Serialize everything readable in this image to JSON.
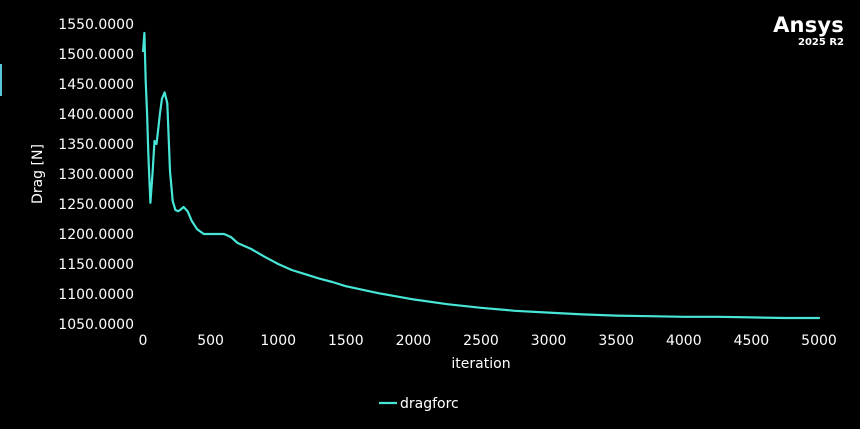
{
  "brand": {
    "name": "Ansys",
    "version": "2025 R2"
  },
  "colors": {
    "background": "#000000",
    "series": "#47e6d6",
    "text": "#ffffff"
  },
  "chart_data": {
    "type": "line",
    "xlabel": "iteration",
    "ylabel": "Drag [N]",
    "xlim": [
      0,
      5000
    ],
    "ylim": [
      1050,
      1550
    ],
    "xticks": [
      0,
      500,
      1000,
      1500,
      2000,
      2500,
      3000,
      3500,
      4000,
      4500,
      5000
    ],
    "yticks": [
      1050,
      1100,
      1150,
      1200,
      1250,
      1300,
      1350,
      1400,
      1450,
      1500,
      1550
    ],
    "xtick_labels": [
      "0",
      "500",
      "1000",
      "1500",
      "2000",
      "2500",
      "3000",
      "3500",
      "4000",
      "4500",
      "5000"
    ],
    "ytick_labels": [
      "1050.0000",
      "1100.0000",
      "1150.0000",
      "1200.0000",
      "1250.0000",
      "1300.0000",
      "1350.0000",
      "1400.0000",
      "1450.0000",
      "1500.0000",
      "1550.0000"
    ],
    "grid": false,
    "legend_position": "bottom-center",
    "series": [
      {
        "name": "dragforc",
        "x": [
          1,
          10,
          20,
          30,
          40,
          55,
          70,
          85,
          100,
          110,
          125,
          140,
          160,
          180,
          200,
          220,
          240,
          260,
          280,
          300,
          330,
          360,
          400,
          450,
          500,
          550,
          600,
          650,
          700,
          800,
          900,
          1000,
          1100,
          1200,
          1300,
          1400,
          1500,
          1750,
          2000,
          2250,
          2500,
          2750,
          3000,
          3250,
          3500,
          3750,
          4000,
          4250,
          4500,
          4750,
          5000
        ],
        "y": [
          1505,
          1535,
          1455,
          1400,
          1330,
          1252,
          1300,
          1355,
          1350,
          1370,
          1400,
          1425,
          1436,
          1418,
          1305,
          1255,
          1240,
          1238,
          1241,
          1245,
          1238,
          1222,
          1208,
          1200,
          1200,
          1200,
          1200,
          1195,
          1185,
          1175,
          1162,
          1150,
          1140,
          1133,
          1126,
          1120,
          1113,
          1101,
          1091,
          1083,
          1077,
          1072,
          1069,
          1066,
          1064,
          1063,
          1062,
          1062,
          1061,
          1060,
          1060
        ]
      }
    ]
  }
}
